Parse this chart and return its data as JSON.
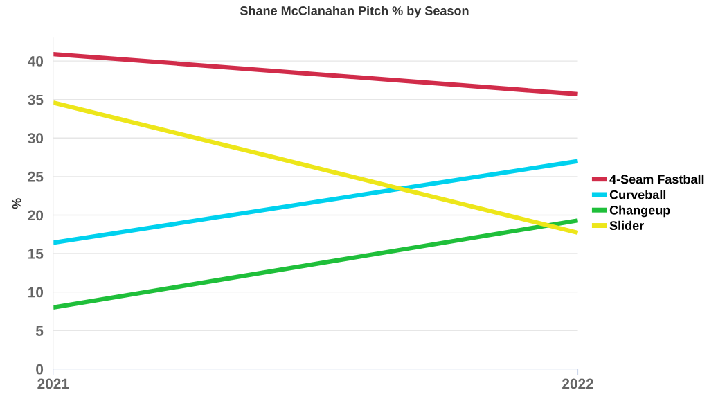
{
  "chart_data": {
    "type": "line",
    "title": "Shane McClanahan Pitch % by Season",
    "ylabel": "%",
    "x": [
      2021,
      2022
    ],
    "xlim": [
      2021,
      2022
    ],
    "xticks": [
      2021,
      2022
    ],
    "series": [
      {
        "name": "4-Seam Fastball",
        "color": "#d12c4a",
        "values": [
          40.9,
          35.7
        ]
      },
      {
        "name": "Curveball",
        "color": "#00d1ee",
        "values": [
          16.4,
          27.0
        ]
      },
      {
        "name": "Changeup",
        "color": "#1fbf3a",
        "values": [
          8.0,
          19.3
        ]
      },
      {
        "name": "Slider",
        "color": "#ede61a",
        "values": [
          34.6,
          17.7
        ]
      }
    ],
    "ylim": [
      0,
      43
    ],
    "yticks": [
      0,
      5,
      10,
      15,
      20,
      25,
      30,
      35,
      40
    ],
    "grid": "y",
    "legend": "right",
    "marker": "none",
    "line_style": "solid"
  }
}
